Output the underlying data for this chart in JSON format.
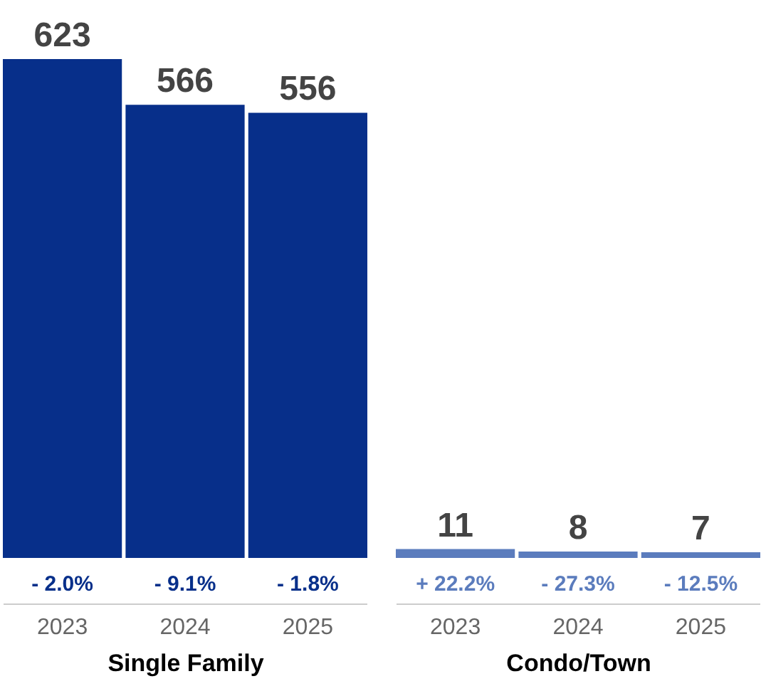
{
  "chart_data": [
    {
      "type": "bar",
      "categories": [
        "2023",
        "2024",
        "2025"
      ],
      "values": [
        623,
        566,
        556
      ],
      "color": "#072f8a",
      "data_labels": true,
      "xlabel": "Single Family",
      "annotations": [
        "- 2.0%",
        "- 9.1%",
        "- 1.8%"
      ]
    },
    {
      "type": "bar",
      "categories": [
        "2023",
        "2024",
        "2025"
      ],
      "values": [
        11,
        8,
        7
      ],
      "color": "#5b7cbd",
      "data_labels": true,
      "xlabel": "Condo/Town",
      "annotations": [
        "+ 22.2%",
        "- 27.3%",
        "- 12.5%"
      ]
    }
  ]
}
